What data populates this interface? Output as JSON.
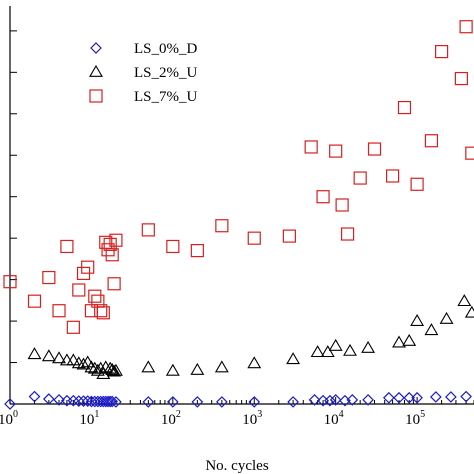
{
  "chart_data": {
    "type": "scatter",
    "xlabel": "No. cycles",
    "ylabel": "",
    "x_scale": "log",
    "xlim": [
      1,
      500000
    ],
    "ylim": [
      0,
      9.6
    ],
    "x_ticks": [
      {
        "value": 1,
        "base": "10",
        "exp": "0"
      },
      {
        "value": 10,
        "base": "10",
        "exp": "1"
      },
      {
        "value": 100,
        "base": "10",
        "exp": "2"
      },
      {
        "value": 1000,
        "base": "10",
        "exp": "3"
      },
      {
        "value": 10000,
        "base": "10",
        "exp": "4"
      },
      {
        "value": 100000,
        "base": "10",
        "exp": "5"
      }
    ],
    "grid": false,
    "legend_position": "top-left",
    "series": [
      {
        "name": "LS_0%_D",
        "marker": "diamond",
        "color": "#1c1cc8",
        "points": [
          [
            1,
            0.0
          ],
          [
            2,
            0.18
          ],
          [
            3,
            0.12
          ],
          [
            4,
            0.1
          ],
          [
            5,
            0.08
          ],
          [
            6,
            0.08
          ],
          [
            7,
            0.07
          ],
          [
            8,
            0.07
          ],
          [
            9,
            0.07
          ],
          [
            10,
            0.06
          ],
          [
            11,
            0.06
          ],
          [
            12,
            0.06
          ],
          [
            13,
            0.06
          ],
          [
            14,
            0.06
          ],
          [
            15,
            0.06
          ],
          [
            16,
            0.06
          ],
          [
            17,
            0.06
          ],
          [
            18,
            0.06
          ],
          [
            20,
            0.05
          ],
          [
            50,
            0.05
          ],
          [
            100,
            0.05
          ],
          [
            200,
            0.05
          ],
          [
            400,
            0.05
          ],
          [
            1000,
            0.05
          ],
          [
            3000,
            0.05
          ],
          [
            5500,
            0.1
          ],
          [
            7000,
            0.08
          ],
          [
            8500,
            0.08
          ],
          [
            10000,
            0.1
          ],
          [
            13000,
            0.08
          ],
          [
            16000,
            0.1
          ],
          [
            25000,
            0.1
          ],
          [
            45000,
            0.15
          ],
          [
            60000,
            0.15
          ],
          [
            80000,
            0.15
          ],
          [
            100000,
            0.15
          ],
          [
            170000,
            0.17
          ],
          [
            260000,
            0.17
          ],
          [
            400000,
            0.18
          ]
        ]
      },
      {
        "name": "LS_2%_U",
        "marker": "triangle",
        "color": "#000000",
        "points": [
          [
            2,
            1.2
          ],
          [
            3,
            1.15
          ],
          [
            4,
            1.1
          ],
          [
            5,
            1.05
          ],
          [
            6,
            1.05
          ],
          [
            7,
            0.98
          ],
          [
            8,
            0.95
          ],
          [
            9,
            1.0
          ],
          [
            10,
            0.88
          ],
          [
            11,
            0.85
          ],
          [
            12,
            0.8
          ],
          [
            13,
            0.85
          ],
          [
            14,
            0.72
          ],
          [
            15,
            0.88
          ],
          [
            17,
            0.85
          ],
          [
            18,
            0.82
          ],
          [
            19,
            0.78
          ],
          [
            20,
            0.8
          ],
          [
            50,
            0.88
          ],
          [
            100,
            0.8
          ],
          [
            200,
            0.82
          ],
          [
            400,
            0.88
          ],
          [
            1000,
            0.98
          ],
          [
            3000,
            1.08
          ],
          [
            6000,
            1.25
          ],
          [
            8000,
            1.25
          ],
          [
            10000,
            1.4
          ],
          [
            15000,
            1.28
          ],
          [
            25000,
            1.35
          ],
          [
            60000,
            1.48
          ],
          [
            80000,
            1.52
          ],
          [
            100000,
            2.0
          ],
          [
            150000,
            1.78
          ],
          [
            230000,
            2.05
          ],
          [
            380000,
            2.48
          ],
          [
            470000,
            2.2
          ]
        ]
      },
      {
        "name": "LS_7%_U",
        "marker": "square",
        "color": "#d62020",
        "points": [
          [
            1,
            2.95
          ],
          [
            2,
            2.48
          ],
          [
            3,
            3.05
          ],
          [
            4,
            2.25
          ],
          [
            5,
            3.8
          ],
          [
            6,
            1.85
          ],
          [
            7,
            2.75
          ],
          [
            8,
            3.15
          ],
          [
            9,
            3.3
          ],
          [
            10,
            2.25
          ],
          [
            11,
            2.6
          ],
          [
            12,
            2.48
          ],
          [
            13,
            2.25
          ],
          [
            14,
            2.2
          ],
          [
            15,
            3.9
          ],
          [
            16,
            3.72
          ],
          [
            17,
            3.85
          ],
          [
            18,
            3.6
          ],
          [
            19,
            2.9
          ],
          [
            20,
            3.95
          ],
          [
            50,
            4.2
          ],
          [
            100,
            3.8
          ],
          [
            200,
            3.7
          ],
          [
            400,
            4.3
          ],
          [
            1000,
            4.0
          ],
          [
            2700,
            4.05
          ],
          [
            5000,
            6.2
          ],
          [
            7000,
            5.0
          ],
          [
            10000,
            6.1
          ],
          [
            12000,
            4.8
          ],
          [
            14000,
            4.1
          ],
          [
            20000,
            5.45
          ],
          [
            30000,
            6.15
          ],
          [
            50000,
            5.5
          ],
          [
            70000,
            7.15
          ],
          [
            100000,
            5.3
          ],
          [
            150000,
            6.35
          ],
          [
            200000,
            8.5
          ],
          [
            350000,
            7.85
          ],
          [
            400000,
            9.1
          ],
          [
            470000,
            6.05
          ]
        ]
      }
    ]
  }
}
